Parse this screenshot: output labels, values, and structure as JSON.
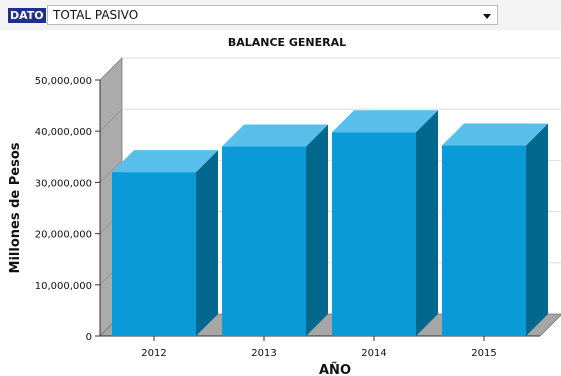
{
  "filter": {
    "label": "DATO",
    "selected": "TOTAL PASIVO"
  },
  "chart_data": {
    "type": "bar",
    "style": "3d",
    "title": "BALANCE GENERAL",
    "xlabel": "AÑO",
    "ylabel": "Millones de Pesos",
    "categories": [
      "2012",
      "2013",
      "2014",
      "2015"
    ],
    "values": [
      32000000,
      37000000,
      39800000,
      37200000
    ],
    "ylim": [
      0,
      50000000
    ],
    "yticks": [
      0,
      10000000,
      20000000,
      30000000,
      40000000,
      50000000
    ],
    "ytick_labels": [
      "0",
      "10,000,000",
      "20,000,000",
      "30,000,000",
      "40,000,000",
      "50,000,000"
    ],
    "grid": true,
    "legend": "none",
    "colors": {
      "bar_front": "#0a9ad8",
      "bar_top": "#58bfea",
      "bar_side": "#03688e",
      "wall": "#ababab",
      "floor": "#a6a6a6"
    }
  }
}
